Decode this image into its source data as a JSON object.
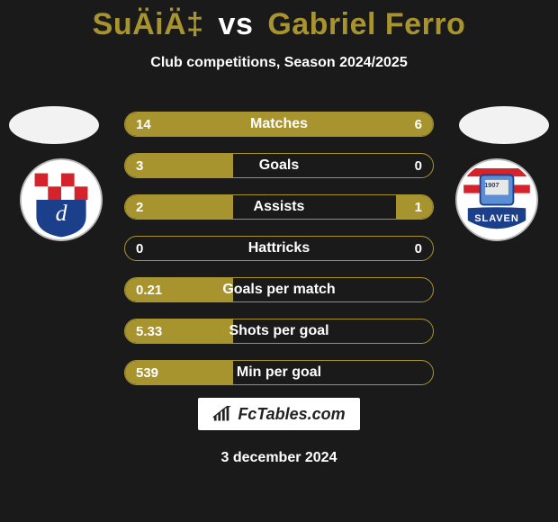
{
  "title": {
    "player1": "SuÄiÄ‡",
    "vs": "vs",
    "player2": "Gabriel Ferro"
  },
  "subtitle": "Club competitions, Season 2024/2025",
  "colors": {
    "accent": "#a8942f",
    "bg": "#1a1a1a",
    "text": "#ffffff"
  },
  "bars": [
    {
      "label": "Matches",
      "left": "14",
      "right": "6",
      "leftPct": 70,
      "rightPct": 30
    },
    {
      "label": "Goals",
      "left": "3",
      "right": "0",
      "leftPct": 35,
      "rightPct": 0
    },
    {
      "label": "Assists",
      "left": "2",
      "right": "1",
      "leftPct": 35,
      "rightPct": 12
    },
    {
      "label": "Hattricks",
      "left": "0",
      "right": "0",
      "leftPct": 0,
      "rightPct": 0
    },
    {
      "label": "Goals per match",
      "left": "0.21",
      "right": "",
      "leftPct": 35,
      "rightPct": 0
    },
    {
      "label": "Shots per goal",
      "left": "5.33",
      "right": "",
      "leftPct": 35,
      "rightPct": 0
    },
    {
      "label": "Min per goal",
      "left": "539",
      "right": "",
      "leftPct": 35,
      "rightPct": 0
    }
  ],
  "footer_brand": "FcTables.com",
  "date": "3 december 2024"
}
